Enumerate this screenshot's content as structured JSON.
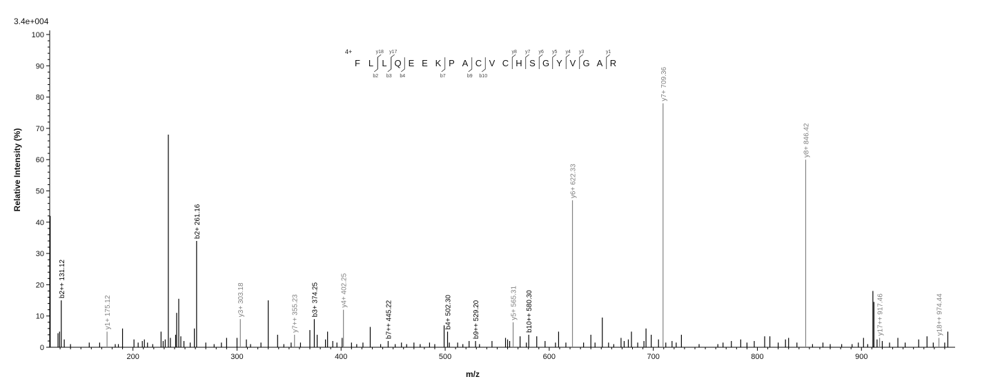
{
  "chart_data": {
    "type": "bar",
    "subtype": "mass-spectrum",
    "scale_label": "3.4e+004",
    "ylabel": "Relative   Intensity (%)",
    "xlabel": "m/z",
    "xlim": [
      120,
      990
    ],
    "ylim": [
      0,
      100
    ],
    "xticks": [
      200,
      300,
      400,
      500,
      600,
      700,
      800,
      900
    ],
    "yticks": [
      0,
      10,
      20,
      30,
      40,
      50,
      60,
      70,
      80,
      90,
      100
    ],
    "colors": {
      "b_ion": "#000000",
      "y_ion": "#808080",
      "noise": "#000000"
    },
    "annotated_peaks": [
      {
        "label": "b2++ 131.12",
        "mz": 131.12,
        "intensity": 15,
        "ion": "b"
      },
      {
        "label": "y1+ 175.12",
        "mz": 175.12,
        "intensity": 5,
        "ion": "y"
      },
      {
        "label": "b2+ 261.16",
        "mz": 261.16,
        "intensity": 34,
        "ion": "b"
      },
      {
        "label": "y3+ 303.18",
        "mz": 303.18,
        "intensity": 9,
        "ion": "y"
      },
      {
        "label": "y7++ 355.23",
        "mz": 355.23,
        "intensity": 4,
        "ion": "y"
      },
      {
        "label": "b3+ 374.25",
        "mz": 374.25,
        "intensity": 9,
        "ion": "b"
      },
      {
        "label": "y4+ 402.25",
        "mz": 402.25,
        "intensity": 12,
        "ion": "y"
      },
      {
        "label": "b7++ 445.22",
        "mz": 445.22,
        "intensity": 2,
        "ion": "b"
      },
      {
        "label": "b4+ 502.30",
        "mz": 502.3,
        "intensity": 5,
        "ion": "b"
      },
      {
        "label": "b9++ 529.20",
        "mz": 529.2,
        "intensity": 2,
        "ion": "b"
      },
      {
        "label": "y5+ 565.31",
        "mz": 565.31,
        "intensity": 8,
        "ion": "y"
      },
      {
        "label": "b10++ 580.30",
        "mz": 580.3,
        "intensity": 4,
        "ion": "b"
      },
      {
        "label": "y6+ 622.33",
        "mz": 622.33,
        "intensity": 47,
        "ion": "y"
      },
      {
        "label": "y7+ 709.36",
        "mz": 709.36,
        "intensity": 78,
        "ion": "y"
      },
      {
        "label": "y8+ 846.42",
        "mz": 846.42,
        "intensity": 60,
        "ion": "y"
      },
      {
        "label": "y17++ 917.46",
        "mz": 917.46,
        "intensity": 3,
        "ion": "y"
      },
      {
        "label": "y18++ 974.44",
        "mz": 974.44,
        "intensity": 3,
        "ion": "y"
      }
    ],
    "unlabeled_peaks": [
      {
        "mz": 120.5,
        "intensity": 42
      },
      {
        "mz": 128,
        "intensity": 4.5
      },
      {
        "mz": 129.5,
        "intensity": 5
      },
      {
        "mz": 134,
        "intensity": 2.5
      },
      {
        "mz": 140,
        "intensity": 1
      },
      {
        "mz": 158,
        "intensity": 1.5
      },
      {
        "mz": 168,
        "intensity": 1.5
      },
      {
        "mz": 183,
        "intensity": 1
      },
      {
        "mz": 186,
        "intensity": 1
      },
      {
        "mz": 190,
        "intensity": 6
      },
      {
        "mz": 201,
        "intensity": 2.5
      },
      {
        "mz": 205,
        "intensity": 1.5
      },
      {
        "mz": 209,
        "intensity": 2
      },
      {
        "mz": 211,
        "intensity": 2.5
      },
      {
        "mz": 214,
        "intensity": 1.5
      },
      {
        "mz": 219,
        "intensity": 1
      },
      {
        "mz": 227,
        "intensity": 5
      },
      {
        "mz": 229,
        "intensity": 2
      },
      {
        "mz": 231,
        "intensity": 2.5
      },
      {
        "mz": 234,
        "intensity": 68
      },
      {
        "mz": 236,
        "intensity": 3
      },
      {
        "mz": 241,
        "intensity": 4
      },
      {
        "mz": 242,
        "intensity": 11
      },
      {
        "mz": 244,
        "intensity": 15.5
      },
      {
        "mz": 246,
        "intensity": 3.5
      },
      {
        "mz": 249,
        "intensity": 2
      },
      {
        "mz": 255,
        "intensity": 1.5
      },
      {
        "mz": 259,
        "intensity": 6
      },
      {
        "mz": 270,
        "intensity": 1.5
      },
      {
        "mz": 278,
        "intensity": 1
      },
      {
        "mz": 285,
        "intensity": 1.5
      },
      {
        "mz": 290,
        "intensity": 3
      },
      {
        "mz": 300,
        "intensity": 3
      },
      {
        "mz": 309,
        "intensity": 2.5
      },
      {
        "mz": 313,
        "intensity": 1
      },
      {
        "mz": 323,
        "intensity": 1.5
      },
      {
        "mz": 330,
        "intensity": 15
      },
      {
        "mz": 339,
        "intensity": 4
      },
      {
        "mz": 345,
        "intensity": 1
      },
      {
        "mz": 352,
        "intensity": 1.5
      },
      {
        "mz": 361,
        "intensity": 1.5
      },
      {
        "mz": 370,
        "intensity": 5.5
      },
      {
        "mz": 377,
        "intensity": 4
      },
      {
        "mz": 385,
        "intensity": 2.5
      },
      {
        "mz": 387,
        "intensity": 5
      },
      {
        "mz": 392,
        "intensity": 2
      },
      {
        "mz": 396,
        "intensity": 1.5
      },
      {
        "mz": 401,
        "intensity": 3
      },
      {
        "mz": 410,
        "intensity": 1.5
      },
      {
        "mz": 415,
        "intensity": 1
      },
      {
        "mz": 421,
        "intensity": 1.5
      },
      {
        "mz": 428,
        "intensity": 6.5
      },
      {
        "mz": 438,
        "intensity": 1
      },
      {
        "mz": 452,
        "intensity": 1
      },
      {
        "mz": 458,
        "intensity": 1.5
      },
      {
        "mz": 463,
        "intensity": 1
      },
      {
        "mz": 470,
        "intensity": 1.5
      },
      {
        "mz": 476,
        "intensity": 1
      },
      {
        "mz": 485,
        "intensity": 1.5
      },
      {
        "mz": 490,
        "intensity": 1
      },
      {
        "mz": 499,
        "intensity": 7
      },
      {
        "mz": 504,
        "intensity": 1.5
      },
      {
        "mz": 512,
        "intensity": 1.5
      },
      {
        "mz": 517,
        "intensity": 1
      },
      {
        "mz": 523,
        "intensity": 2
      },
      {
        "mz": 533,
        "intensity": 1
      },
      {
        "mz": 545,
        "intensity": 2
      },
      {
        "mz": 558,
        "intensity": 3
      },
      {
        "mz": 560,
        "intensity": 2.5
      },
      {
        "mz": 562,
        "intensity": 2
      },
      {
        "mz": 572,
        "intensity": 3.5
      },
      {
        "mz": 578,
        "intensity": 1.5
      },
      {
        "mz": 588,
        "intensity": 3.5
      },
      {
        "mz": 596,
        "intensity": 2
      },
      {
        "mz": 606,
        "intensity": 1.5
      },
      {
        "mz": 609,
        "intensity": 5
      },
      {
        "mz": 616,
        "intensity": 1.5
      },
      {
        "mz": 633,
        "intensity": 1.5
      },
      {
        "mz": 640,
        "intensity": 4
      },
      {
        "mz": 644,
        "intensity": 1.5
      },
      {
        "mz": 651,
        "intensity": 9.5
      },
      {
        "mz": 657,
        "intensity": 1.5
      },
      {
        "mz": 662,
        "intensity": 1
      },
      {
        "mz": 669,
        "intensity": 3
      },
      {
        "mz": 672,
        "intensity": 2
      },
      {
        "mz": 676,
        "intensity": 2.5
      },
      {
        "mz": 679,
        "intensity": 5
      },
      {
        "mz": 685,
        "intensity": 1.5
      },
      {
        "mz": 691,
        "intensity": 2
      },
      {
        "mz": 693,
        "intensity": 6
      },
      {
        "mz": 698,
        "intensity": 4
      },
      {
        "mz": 705,
        "intensity": 2.5
      },
      {
        "mz": 712,
        "intensity": 1.5
      },
      {
        "mz": 718,
        "intensity": 2
      },
      {
        "mz": 722,
        "intensity": 1.5
      },
      {
        "mz": 727,
        "intensity": 4
      },
      {
        "mz": 744,
        "intensity": 1
      },
      {
        "mz": 762,
        "intensity": 1
      },
      {
        "mz": 767,
        "intensity": 1.5
      },
      {
        "mz": 775,
        "intensity": 2
      },
      {
        "mz": 784,
        "intensity": 2.5
      },
      {
        "mz": 790,
        "intensity": 1.5
      },
      {
        "mz": 797,
        "intensity": 2
      },
      {
        "mz": 807,
        "intensity": 3.5
      },
      {
        "mz": 812,
        "intensity": 3.5
      },
      {
        "mz": 820,
        "intensity": 1.5
      },
      {
        "mz": 827,
        "intensity": 2.5
      },
      {
        "mz": 830,
        "intensity": 3
      },
      {
        "mz": 838,
        "intensity": 1.5
      },
      {
        "mz": 853,
        "intensity": 1
      },
      {
        "mz": 863,
        "intensity": 1.5
      },
      {
        "mz": 870,
        "intensity": 1
      },
      {
        "mz": 881,
        "intensity": 1
      },
      {
        "mz": 891,
        "intensity": 1
      },
      {
        "mz": 897,
        "intensity": 1.5
      },
      {
        "mz": 902,
        "intensity": 3
      },
      {
        "mz": 906,
        "intensity": 1
      },
      {
        "mz": 911,
        "intensity": 18
      },
      {
        "mz": 912,
        "intensity": 14.5
      },
      {
        "mz": 915,
        "intensity": 2.5
      },
      {
        "mz": 920,
        "intensity": 2
      },
      {
        "mz": 927,
        "intensity": 1.5
      },
      {
        "mz": 935,
        "intensity": 3
      },
      {
        "mz": 942,
        "intensity": 1.5
      },
      {
        "mz": 955,
        "intensity": 2.5
      },
      {
        "mz": 963,
        "intensity": 3.5
      },
      {
        "mz": 969,
        "intensity": 1.5
      },
      {
        "mz": 980,
        "intensity": 1.5
      },
      {
        "mz": 983,
        "intensity": 5
      }
    ],
    "peptide": {
      "charge_label": "4+",
      "sequence": [
        "F",
        "L",
        "L",
        "Q",
        "E",
        "E",
        "K",
        "P",
        "A",
        "C",
        "V",
        "C",
        "H",
        "S",
        "G",
        "Y",
        "V",
        "G",
        "A",
        "R"
      ],
      "b_ions": [
        {
          "label": "b2",
          "after_index": 1
        },
        {
          "label": "b3",
          "after_index": 2
        },
        {
          "label": "b4",
          "after_index": 3
        },
        {
          "label": "b7",
          "after_index": 6
        },
        {
          "label": "b9",
          "after_index": 8
        },
        {
          "label": "b10",
          "after_index": 9
        }
      ],
      "y_ions": [
        {
          "label": "y18",
          "after_index": 1
        },
        {
          "label": "y17",
          "after_index": 2
        },
        {
          "label": "y8",
          "after_index": 11
        },
        {
          "label": "y7",
          "after_index": 12
        },
        {
          "label": "y6",
          "after_index": 13
        },
        {
          "label": "y5",
          "after_index": 14
        },
        {
          "label": "y4",
          "after_index": 15
        },
        {
          "label": "y3",
          "after_index": 16
        },
        {
          "label": "y1",
          "after_index": 18
        }
      ]
    }
  }
}
